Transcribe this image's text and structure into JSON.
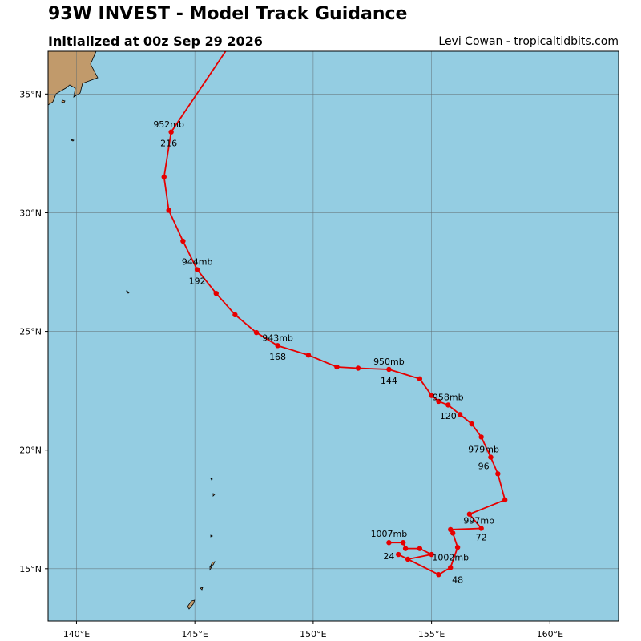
{
  "header": {
    "title": "93W INVEST - Model Track Guidance",
    "subtitle": "Initialized at 00z Sep 29 2026",
    "credit": "Levi Cowan - tropicaltidbits.com"
  },
  "colors": {
    "ocean": "#94cde2",
    "land": "#c19a6b",
    "track": "#e60000",
    "grid": "#5f6b70"
  },
  "map": {
    "lon_range": [
      138.8,
      162.9
    ],
    "lat_range": [
      12.8,
      36.8
    ],
    "lon_ticks": [
      {
        "value": 140,
        "label": "140°E"
      },
      {
        "value": 145,
        "label": "145°E"
      },
      {
        "value": 150,
        "label": "150°E"
      },
      {
        "value": 155,
        "label": "155°E"
      },
      {
        "value": 160,
        "label": "160°E"
      }
    ],
    "lat_ticks": [
      {
        "value": 15,
        "label": "15°N"
      },
      {
        "value": 20,
        "label": "20°N"
      },
      {
        "value": 25,
        "label": "25°N"
      },
      {
        "value": 30,
        "label": "30°N"
      },
      {
        "value": 35,
        "label": "35°N"
      }
    ]
  },
  "track": [
    [
      153.2,
      16.1
    ],
    [
      153.8,
      16.1
    ],
    [
      153.9,
      15.85
    ],
    [
      154.5,
      15.85
    ],
    [
      155.0,
      15.6
    ],
    [
      154.0,
      15.4
    ],
    [
      153.6,
      15.6
    ],
    [
      155.3,
      14.75
    ],
    [
      155.8,
      15.05
    ],
    [
      156.1,
      15.9
    ],
    [
      155.9,
      16.5
    ],
    [
      155.8,
      16.65
    ],
    [
      157.1,
      16.7
    ],
    [
      156.6,
      17.3
    ],
    [
      158.1,
      17.9
    ],
    [
      157.8,
      19.0
    ],
    [
      157.5,
      19.7
    ],
    [
      157.1,
      20.55
    ],
    [
      156.7,
      21.1
    ],
    [
      156.2,
      21.5
    ],
    [
      155.7,
      21.9
    ],
    [
      155.3,
      22.05
    ],
    [
      155.0,
      22.3
    ],
    [
      154.5,
      23.0
    ],
    [
      153.2,
      23.4
    ],
    [
      151.9,
      23.45
    ],
    [
      151.0,
      23.5
    ],
    [
      149.8,
      24.0
    ],
    [
      148.5,
      24.4
    ],
    [
      147.6,
      24.95
    ],
    [
      146.7,
      25.7
    ],
    [
      145.9,
      26.6
    ],
    [
      145.1,
      27.6
    ],
    [
      144.5,
      28.8
    ],
    [
      143.9,
      30.1
    ],
    [
      143.7,
      31.5
    ],
    [
      144.0,
      33.4
    ],
    [
      146.3,
      36.8
    ]
  ],
  "labels": [
    {
      "text": "1007mb",
      "lon": 153.2,
      "lat": 16.35
    },
    {
      "text": "24",
      "lon": 153.2,
      "lat": 15.4
    },
    {
      "text": "1002mb",
      "lon": 155.8,
      "lat": 15.35
    },
    {
      "text": "48",
      "lon": 156.1,
      "lat": 14.4
    },
    {
      "text": "997mb",
      "lon": 157.0,
      "lat": 16.9
    },
    {
      "text": "72",
      "lon": 157.1,
      "lat": 16.2
    },
    {
      "text": "979mb",
      "lon": 157.2,
      "lat": 19.9
    },
    {
      "text": "96",
      "lon": 157.2,
      "lat": 19.2
    },
    {
      "text": "958mb",
      "lon": 155.7,
      "lat": 22.1
    },
    {
      "text": "120",
      "lon": 155.7,
      "lat": 21.3
    },
    {
      "text": "950mb",
      "lon": 153.2,
      "lat": 23.6
    },
    {
      "text": "144",
      "lon": 153.2,
      "lat": 22.8
    },
    {
      "text": "943mb",
      "lon": 148.5,
      "lat": 24.6
    },
    {
      "text": "168",
      "lon": 148.5,
      "lat": 23.8
    },
    {
      "text": "944mb",
      "lon": 145.1,
      "lat": 27.8
    },
    {
      "text": "192",
      "lon": 145.1,
      "lat": 27.0
    },
    {
      "text": "952mb",
      "lon": 143.9,
      "lat": 33.6
    },
    {
      "text": "216",
      "lon": 143.9,
      "lat": 32.8
    }
  ]
}
